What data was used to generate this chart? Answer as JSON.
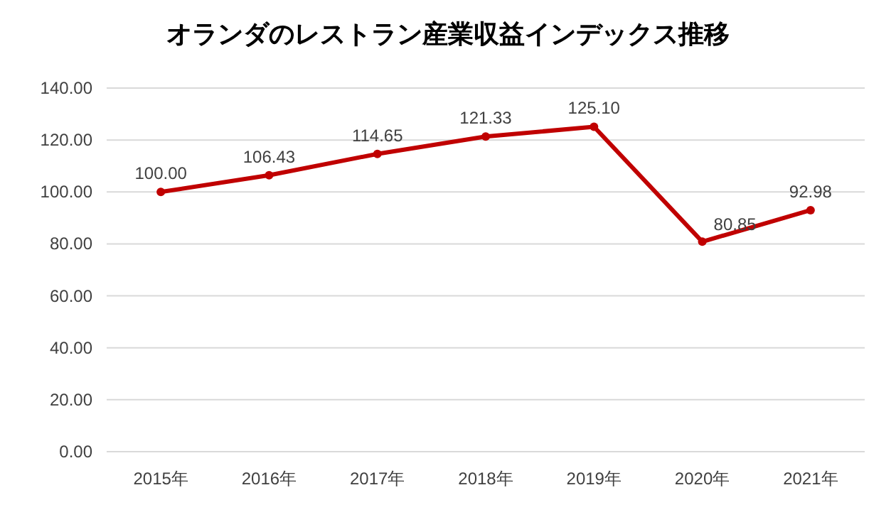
{
  "chart_data": {
    "type": "line",
    "title": "オランダのレストラン産業収益インデックス推移",
    "categories": [
      "2015年",
      "2016年",
      "2017年",
      "2018年",
      "2019年",
      "2020年",
      "2021年"
    ],
    "values": [
      100.0,
      106.43,
      114.65,
      121.33,
      125.1,
      80.85,
      92.98
    ],
    "value_labels": [
      "100.00",
      "106.43",
      "114.65",
      "121.33",
      "125.10",
      "80.85",
      "92.98"
    ],
    "color": "#c00000",
    "marker": "circle",
    "grid": "y",
    "ylim": [
      0,
      140
    ],
    "yticks": [
      {
        "value": 0,
        "label": "0.00"
      },
      {
        "value": 20,
        "label": "20.00"
      },
      {
        "value": 40,
        "label": "40.00"
      },
      {
        "value": 60,
        "label": "60.00"
      },
      {
        "value": 80,
        "label": "80.00"
      },
      {
        "value": 100,
        "label": "100.00"
      },
      {
        "value": 120,
        "label": "120.00"
      },
      {
        "value": 140,
        "label": "140.00"
      }
    ]
  }
}
